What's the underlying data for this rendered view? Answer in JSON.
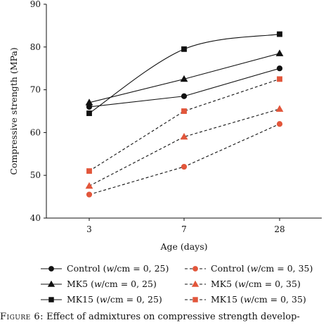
{
  "chart_data": {
    "type": "line",
    "xlabel": "Age (days)",
    "ylabel": "Compressive strength (MPa)",
    "categories": [
      "3",
      "7",
      "28"
    ],
    "ylim": [
      40,
      90
    ],
    "yticks": [
      40,
      50,
      60,
      70,
      80,
      90
    ],
    "grid": false,
    "legend_position": "bottom",
    "series": [
      {
        "name": "Control (w/cm = 0, 25)",
        "values": [
          66,
          68.5,
          75
        ],
        "color": "#111111",
        "marker": "circle",
        "dash": "solid",
        "smooth": false
      },
      {
        "name": "MK5 (w/cm = 0, 25)",
        "values": [
          67,
          72.5,
          78.5
        ],
        "color": "#111111",
        "marker": "triangle",
        "dash": "solid",
        "smooth": false
      },
      {
        "name": "MK15 (w/cm = 0, 25)",
        "values": [
          64.5,
          79.5,
          83
        ],
        "color": "#111111",
        "marker": "square",
        "dash": "solid",
        "smooth": true
      },
      {
        "name": "Control (w/cm = 0, 35)",
        "values": [
          45.5,
          52,
          62
        ],
        "color": "#e2563b",
        "marker": "circle",
        "dash": "dashed",
        "smooth": false
      },
      {
        "name": "MK5 (w/cm = 0, 35)",
        "values": [
          47.5,
          59,
          65.5
        ],
        "color": "#e2563b",
        "marker": "triangle",
        "dash": "dashed",
        "smooth": false
      },
      {
        "name": "MK15 (w/cm = 0, 35)",
        "values": [
          51,
          65,
          72.5
        ],
        "color": "#e2563b",
        "marker": "square",
        "dash": "dashed",
        "smooth": false
      }
    ],
    "legend": [
      {
        "base": "Control (",
        "italic": "w",
        "rest": "/cm = 0, 25)"
      },
      {
        "base": "Control (",
        "italic": "w",
        "rest": "/cm = 0, 35)"
      },
      {
        "base": "MK5 (",
        "italic": "w",
        "rest": "/cm = 0, 25)"
      },
      {
        "base": "MK5 (",
        "italic": "w",
        "rest": "/cm = 0, 35)"
      },
      {
        "base": "MK15 (",
        "italic": "w",
        "rest": "/cm = 0, 25)"
      },
      {
        "base": "MK15 (",
        "italic": "w",
        "rest": "/cm = 0, 35)"
      }
    ]
  },
  "caption": {
    "label": "Figure 6:",
    "text": "Effect of admixtures on compressive strength develop-"
  }
}
